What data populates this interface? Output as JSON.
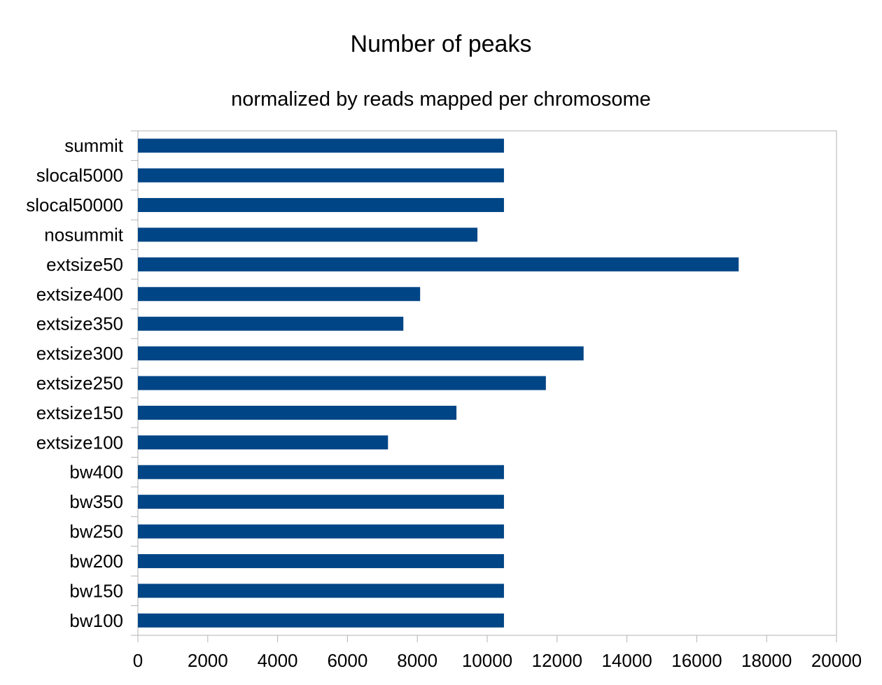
{
  "chart_data": {
    "type": "bar",
    "orientation": "horizontal",
    "title": "Number of peaks",
    "subtitle": "normalized by reads mapped per chromosome",
    "xlabel": "",
    "ylabel": "",
    "categories": [
      "summit",
      "slocal5000",
      "slocal50000",
      "nosummit",
      "extsize50",
      "extsize400",
      "extsize350",
      "extsize300",
      "extsize250",
      "extsize150",
      "extsize100",
      "bw400",
      "bw350",
      "bw250",
      "bw200",
      "bw150",
      "bw100"
    ],
    "values": [
      10480,
      10480,
      10480,
      9720,
      17200,
      8080,
      7600,
      12760,
      11680,
      9120,
      7160,
      10480,
      10480,
      10480,
      10480,
      10480,
      10480
    ],
    "xlim": [
      0,
      20000
    ],
    "x_ticks": [
      "0",
      "2000",
      "4000",
      "6000",
      "8000",
      "10000",
      "12000",
      "14000",
      "16000",
      "18000",
      "20000"
    ],
    "grid": false,
    "legend": "none",
    "bar_color": "#004586",
    "axis_color": "#b3b3b3"
  }
}
